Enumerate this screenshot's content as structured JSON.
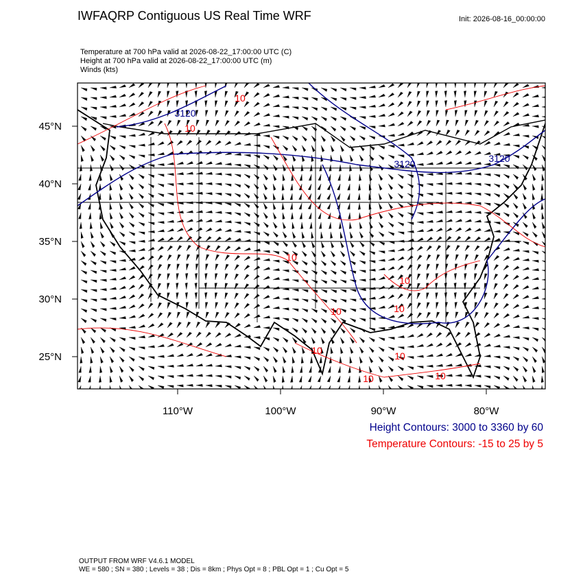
{
  "header": {
    "title": "IWFAQRP Contiguous US Real Time WRF",
    "init": "Init: 2026-08-16_00:00:00"
  },
  "fields": [
    "Temperature at 700 hPa valid at 2026-08-22_17:00:00 UTC   (C)",
    "Height at 700 hPa valid at 2026-08-22_17:00:00 UTC   (m)",
    "Winds   (kts)"
  ],
  "map": {
    "lat_labels": [
      "45°N",
      "40°N",
      "35°N",
      "30°N",
      "25°N"
    ],
    "lon_labels": [
      "110°W",
      "100°W",
      "90°W",
      "80°W"
    ],
    "height_labels": [
      "3120",
      "3120",
      "3120"
    ],
    "temp_labels": [
      "10",
      "10",
      "10",
      "10",
      "10",
      "10",
      "10",
      "10",
      "10",
      "10"
    ]
  },
  "legend": {
    "height": "Height Contours: 3000 to 3360 by 60",
    "temperature": "Temperature Contours: -15 to 25 by 5"
  },
  "footer": [
    "OUTPUT FROM WRF V4.6.1 MODEL",
    "WE = 580 ; SN = 380 ; Levels = 38 ; Dis = 8km ; Phys Opt = 8 ; PBL Opt = 1 ; Cu Opt = 5"
  ]
}
